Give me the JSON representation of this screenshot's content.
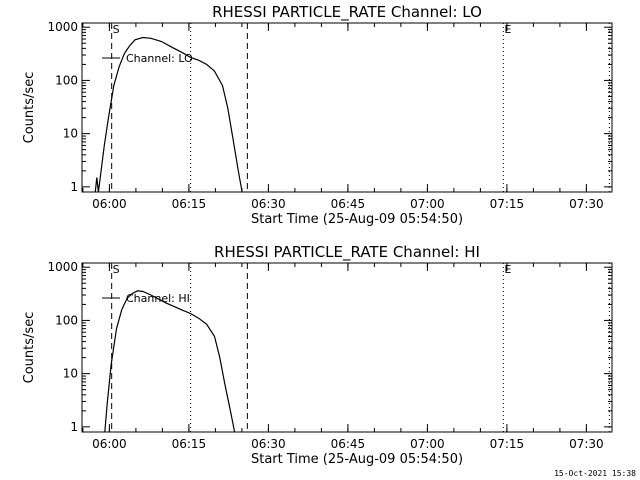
{
  "footer": {
    "date": "15-Oct-2021 15:38"
  },
  "chart_data": [
    {
      "type": "line",
      "title": "RHESSI PARTICLE_RATE Channel: LO",
      "xlabel": "Start Time (25-Aug-09 05:54:50)",
      "ylabel": "Counts/sec",
      "x_unit": "minutes after 05:54:50",
      "xlim": [
        0,
        100.0
      ],
      "ylim": [
        0.8,
        1200
      ],
      "yscale": "log",
      "x_ticks": [
        {
          "label": "06:00",
          "value": 5.17
        },
        {
          "label": "06:15",
          "value": 20.17
        },
        {
          "label": "06:30",
          "value": 35.17
        },
        {
          "label": "06:45",
          "value": 50.17
        },
        {
          "label": "07:00",
          "value": 65.17
        },
        {
          "label": "07:15",
          "value": 80.17
        },
        {
          "label": "07:30",
          "value": 95.17
        }
      ],
      "y_ticks": [
        {
          "label": "1",
          "value": 1
        },
        {
          "label": "10",
          "value": 10
        },
        {
          "label": "100",
          "value": 100
        },
        {
          "label": "1000",
          "value": 1000
        }
      ],
      "markers": [
        {
          "label": "S",
          "value": 5.6,
          "style": "dashed"
        },
        {
          "label": "",
          "value": 20.5,
          "style": "dotted"
        },
        {
          "label": "",
          "value": 31.2,
          "style": "dashed"
        },
        {
          "label": "E",
          "value": 79.5,
          "style": "dotted"
        },
        {
          "label": "",
          "value": 99.5,
          "style": "dotted"
        }
      ],
      "legend": {
        "label": "Channel: LO",
        "placement": "top-left"
      },
      "series": [
        {
          "name": "Channel: LO",
          "x": [
            2.5,
            2.8,
            3.1,
            3.6,
            4.2,
            5.0,
            6.0,
            7.0,
            8.0,
            9.0,
            10.0,
            11.5,
            13.0,
            15.0,
            17.0,
            19.0,
            20.5,
            22.0,
            23.5,
            25.0,
            26.5,
            27.5,
            28.5,
            29.5,
            30.2
          ],
          "y": [
            0.8,
            1.5,
            0.8,
            2.0,
            6.0,
            20,
            80,
            180,
            320,
            450,
            580,
            640,
            620,
            540,
            420,
            330,
            270,
            240,
            200,
            150,
            80,
            30,
            8,
            2,
            0.8
          ]
        }
      ]
    },
    {
      "type": "line",
      "title": "RHESSI PARTICLE_RATE Channel: HI",
      "xlabel": "Start Time (25-Aug-09 05:54:50)",
      "ylabel": "Counts/sec",
      "x_unit": "minutes after 05:54:50",
      "xlim": [
        0,
        100.0
      ],
      "ylim": [
        0.8,
        1200
      ],
      "yscale": "log",
      "x_ticks": [
        {
          "label": "06:00",
          "value": 5.17
        },
        {
          "label": "06:15",
          "value": 20.17
        },
        {
          "label": "06:30",
          "value": 35.17
        },
        {
          "label": "06:45",
          "value": 50.17
        },
        {
          "label": "07:00",
          "value": 65.17
        },
        {
          "label": "07:15",
          "value": 80.17
        },
        {
          "label": "07:30",
          "value": 95.17
        }
      ],
      "y_ticks": [
        {
          "label": "1",
          "value": 1
        },
        {
          "label": "10",
          "value": 10
        },
        {
          "label": "100",
          "value": 100
        },
        {
          "label": "1000",
          "value": 1000
        }
      ],
      "markers": [
        {
          "label": "S",
          "value": 5.6,
          "style": "dashed"
        },
        {
          "label": "",
          "value": 20.5,
          "style": "dotted"
        },
        {
          "label": "",
          "value": 31.2,
          "style": "dashed"
        },
        {
          "label": "E",
          "value": 79.5,
          "style": "dotted"
        },
        {
          "label": "",
          "value": 99.5,
          "style": "dotted"
        }
      ],
      "legend": {
        "label": "Channel: HI",
        "placement": "top-left"
      },
      "series": [
        {
          "name": "Channel: HI",
          "x": [
            4.3,
            4.8,
            5.5,
            6.5,
            7.5,
            8.5,
            9.5,
            10.5,
            11.5,
            13.0,
            14.5,
            16.0,
            17.5,
            19.0,
            20.5,
            22.0,
            23.5,
            25.0,
            26.0,
            27.0,
            28.0,
            28.8
          ],
          "y": [
            0.8,
            3.0,
            15,
            70,
            160,
            260,
            320,
            360,
            350,
            300,
            250,
            210,
            180,
            155,
            135,
            110,
            85,
            50,
            20,
            6,
            2,
            0.8
          ]
        }
      ]
    }
  ]
}
